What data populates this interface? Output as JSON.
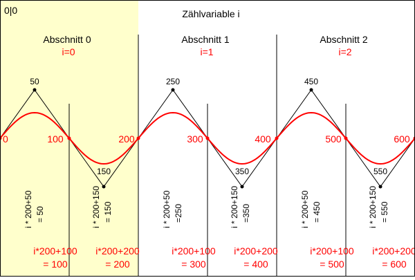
{
  "origin_label": "0|0",
  "title": "Zählvariable i",
  "colors": {
    "highlight": "#ffffcc",
    "accent": "#ff0000",
    "ink": "#000000",
    "frame": "#000000"
  },
  "sections": [
    {
      "heading": "Abschnitt 0",
      "index_label": "i=0",
      "peak_label": "50",
      "trough_label": "150",
      "peak_formula": [
        "i * 200+50",
        "= 50"
      ],
      "trough_formula": [
        "i * 200+150",
        "= 150"
      ],
      "mid_formula": [
        "i*200+100",
        "= 100"
      ],
      "end_formula": [
        "i*200+200",
        "= 200"
      ]
    },
    {
      "heading": "Abschnitt 1",
      "index_label": "i=1",
      "peak_label": "250",
      "trough_label": "350",
      "peak_formula": [
        "i * 200+50",
        "=250"
      ],
      "trough_formula": [
        "i * 200+150",
        "=350"
      ],
      "mid_formula": [
        "i*200+100",
        "= 300"
      ],
      "end_formula": [
        "i*200+200",
        "= 400"
      ]
    },
    {
      "heading": "Abschnitt 2",
      "index_label": "i=2",
      "peak_label": "450",
      "trough_label": "550",
      "peak_formula": [
        "i * 200+50",
        "= 450"
      ],
      "trough_formula": [
        "i * 200+150",
        "= 550"
      ],
      "mid_formula": [
        "i*200+100",
        "= 500"
      ],
      "end_formula": [
        "i*200+200",
        "= 600"
      ]
    }
  ],
  "axis_labels": [
    "0",
    "100",
    "200",
    "300",
    "400",
    "500",
    "600"
  ]
}
